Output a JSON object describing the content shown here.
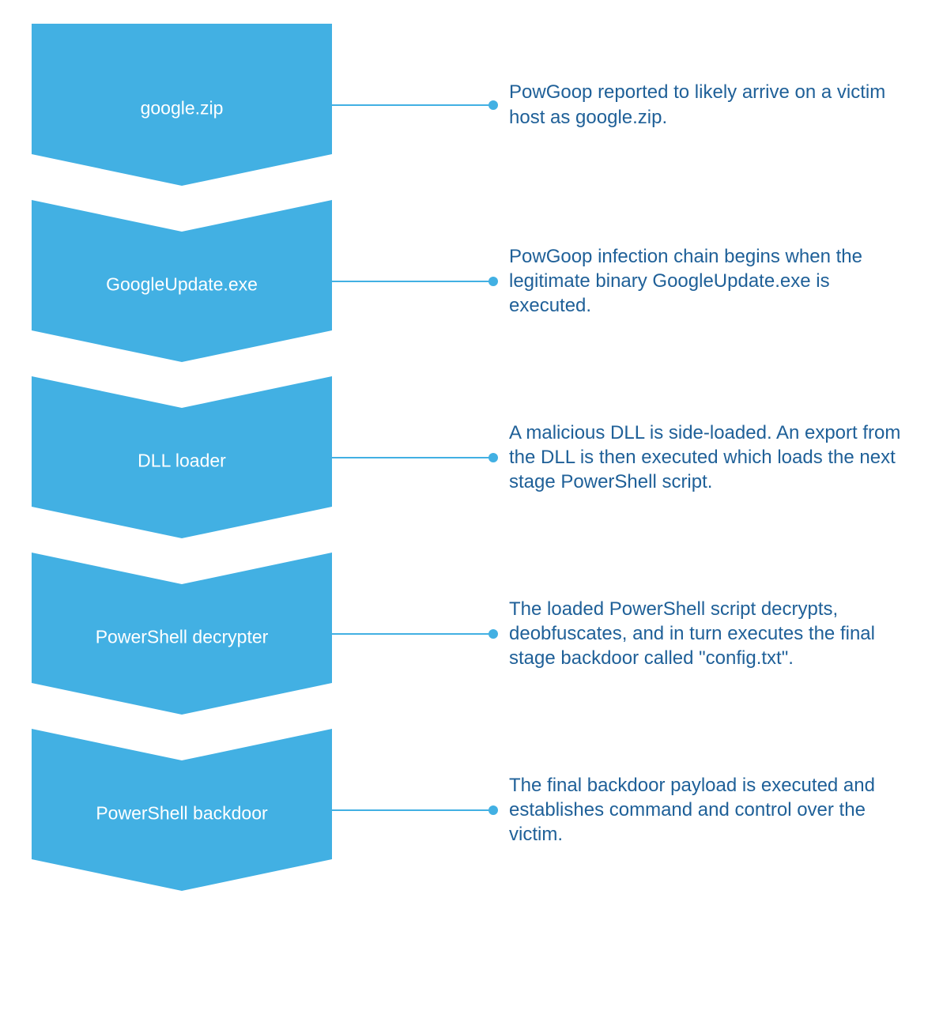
{
  "diagram": {
    "type": "flowchart",
    "background_color": "#ffffff",
    "chevron_fill": "#42b0e3",
    "connector_color": "#42b0e3",
    "desc_text_color": "#1f6098",
    "label_text_color": "#ffffff",
    "label_fontsize": 23,
    "desc_fontsize": 24,
    "chevron_width": 380,
    "chevron_height": 205,
    "connector_width": 200,
    "dot_radius": 6,
    "steps": [
      {
        "label": "google.zip",
        "description": "PowGoop reported to likely arrive on a victim host as google.zip."
      },
      {
        "label": "GoogleUpdate.exe",
        "description": "PowGoop infection chain begins when the legitimate binary GoogleUpdate.exe is executed."
      },
      {
        "label": "DLL loader",
        "description": "A malicious DLL is side-loaded. An export from the DLL is then executed which loads the next stage PowerShell script."
      },
      {
        "label": "PowerShell decrypter",
        "description": "The loaded PowerShell script decrypts, deobfuscates, and in turn executes the final stage backdoor called \"config.txt\"."
      },
      {
        "label": "PowerShell backdoor",
        "description": "The final backdoor payload is executed and establishes command and control over the victim."
      }
    ]
  }
}
